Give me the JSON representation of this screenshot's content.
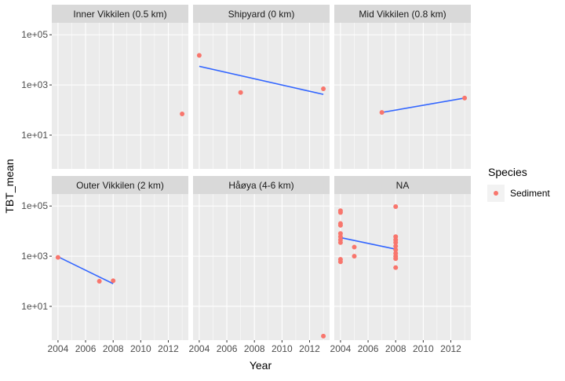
{
  "chart_data": {
    "type": "scatter",
    "xlabel": "Year",
    "ylabel": "TBT_mean",
    "y_scale": "log10",
    "x_ticks": [
      2004,
      2006,
      2008,
      2010,
      2012
    ],
    "y_ticks": [
      {
        "value": 10,
        "label": "1e+01"
      },
      {
        "value": 1000,
        "label": "1e+03"
      },
      {
        "value": 100000,
        "label": "1e+05"
      }
    ],
    "xlim": [
      2003.55,
      2013.45
    ],
    "ylim": [
      0.45,
      300000
    ],
    "legend": {
      "title": "Species",
      "position": "right",
      "entries": [
        {
          "label": "Sediment",
          "color": "#F8766D"
        }
      ]
    },
    "colors": {
      "point": "#F8766D",
      "line": "#3366FF",
      "panel_bg": "#EBEBEB",
      "strip_bg": "#D9D9D9",
      "grid": "#FFFFFF"
    },
    "panels": [
      {
        "title": "Inner Vikkilen (0.5 km)",
        "points": [
          {
            "x": 2013,
            "y": 70
          }
        ],
        "trend": null
      },
      {
        "title": "Shipyard (0 km)",
        "points": [
          {
            "x": 2004,
            "y": 15000
          },
          {
            "x": 2007,
            "y": 500
          },
          {
            "x": 2013,
            "y": 700
          }
        ],
        "trend": [
          {
            "x": 2004,
            "y": 5500
          },
          {
            "x": 2013,
            "y": 420
          }
        ]
      },
      {
        "title": "Mid Vikkilen (0.8 km)",
        "points": [
          {
            "x": 2007,
            "y": 80
          },
          {
            "x": 2013,
            "y": 300
          }
        ],
        "trend": [
          {
            "x": 2007,
            "y": 80
          },
          {
            "x": 2013,
            "y": 300
          }
        ]
      },
      {
        "title": "Outer Vikkilen (2 km)",
        "points": [
          {
            "x": 2004,
            "y": 900
          },
          {
            "x": 2007,
            "y": 100
          },
          {
            "x": 2008,
            "y": 105
          }
        ],
        "trend": [
          {
            "x": 2004,
            "y": 950
          },
          {
            "x": 2008,
            "y": 80
          }
        ]
      },
      {
        "title": "Håøya (4-6 km)",
        "points": [
          {
            "x": 2013,
            "y": 0.65
          }
        ],
        "trend": null
      },
      {
        "title": "NA",
        "points": [
          {
            "x": 2004,
            "y": 65000
          },
          {
            "x": 2004,
            "y": 55000
          },
          {
            "x": 2004,
            "y": 20000
          },
          {
            "x": 2004,
            "y": 17000
          },
          {
            "x": 2004,
            "y": 8000
          },
          {
            "x": 2004,
            "y": 6000
          },
          {
            "x": 2004,
            "y": 4500
          },
          {
            "x": 2004,
            "y": 3500
          },
          {
            "x": 2004,
            "y": 750
          },
          {
            "x": 2004,
            "y": 600
          },
          {
            "x": 2005,
            "y": 2300
          },
          {
            "x": 2005,
            "y": 1000
          },
          {
            "x": 2008,
            "y": 95000
          },
          {
            "x": 2008,
            "y": 6000
          },
          {
            "x": 2008,
            "y": 4500
          },
          {
            "x": 2008,
            "y": 3500
          },
          {
            "x": 2008,
            "y": 2500
          },
          {
            "x": 2008,
            "y": 1800
          },
          {
            "x": 2008,
            "y": 1300
          },
          {
            "x": 2008,
            "y": 1000
          },
          {
            "x": 2008,
            "y": 800
          },
          {
            "x": 2008,
            "y": 350
          }
        ],
        "trend": [
          {
            "x": 2004,
            "y": 5500
          },
          {
            "x": 2008,
            "y": 1900
          }
        ]
      }
    ]
  }
}
